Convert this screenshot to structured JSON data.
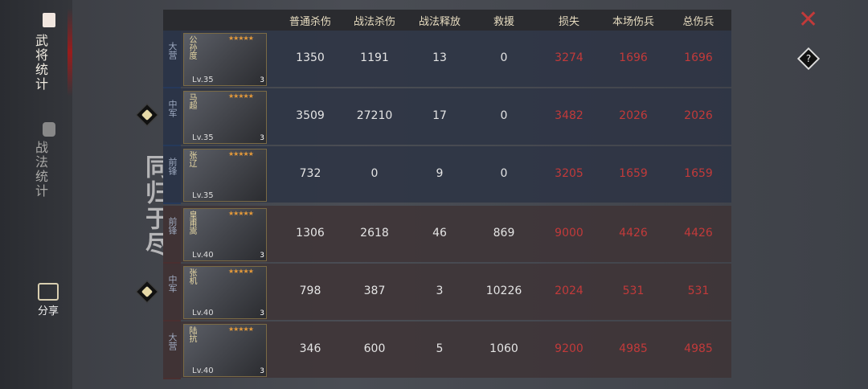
{
  "sidebar": {
    "tabs": [
      {
        "label": "武将统计",
        "active": true
      },
      {
        "label": "战法统计",
        "active": false
      }
    ],
    "share_label": "分享"
  },
  "motto": "同归于尽",
  "headers": [
    "普通杀伤",
    "战法杀伤",
    "战法释放",
    "救援",
    "损失",
    "本场伤兵",
    "总伤兵"
  ],
  "rows": [
    {
      "side": "ally",
      "position": "大营",
      "name": "公孙度",
      "level": "Lv.35",
      "stars": "★★★★★",
      "badge": "3",
      "values": [
        "1350",
        "1191",
        "13",
        "0",
        "3274",
        "1696",
        "1696"
      ]
    },
    {
      "side": "ally",
      "position": "中军",
      "name": "马超",
      "level": "Lv.35",
      "stars": "★★★★★",
      "badge": "3",
      "values": [
        "3509",
        "27210",
        "17",
        "0",
        "3482",
        "2026",
        "2026"
      ]
    },
    {
      "side": "ally",
      "position": "前锋",
      "name": "张辽",
      "level": "Lv.35",
      "stars": "★★★★★",
      "badge": "",
      "values": [
        "732",
        "0",
        "9",
        "0",
        "3205",
        "1659",
        "1659"
      ]
    },
    {
      "side": "enemy",
      "position": "前锋",
      "name": "皇甫嵩",
      "level": "Lv.40",
      "stars": "★★★★★",
      "badge": "3",
      "values": [
        "1306",
        "2618",
        "46",
        "869",
        "9000",
        "4426",
        "4426"
      ]
    },
    {
      "side": "enemy",
      "position": "中军",
      "name": "张机",
      "level": "Lv.40",
      "stars": "★★★★★",
      "badge": "3",
      "values": [
        "798",
        "387",
        "3",
        "10226",
        "2024",
        "531",
        "531"
      ]
    },
    {
      "side": "enemy",
      "position": "大营",
      "name": "陆抗",
      "level": "Lv.40",
      "stars": "★★★★★",
      "badge": "3",
      "values": [
        "346",
        "600",
        "5",
        "1060",
        "9200",
        "4985",
        "4985"
      ]
    }
  ],
  "controls": {
    "close": "✕",
    "help": "?"
  },
  "colors": {
    "loss": "#c23a3a",
    "ally": "#26395a",
    "enemy": "#4a2f30",
    "header": "#e7dcc0"
  }
}
